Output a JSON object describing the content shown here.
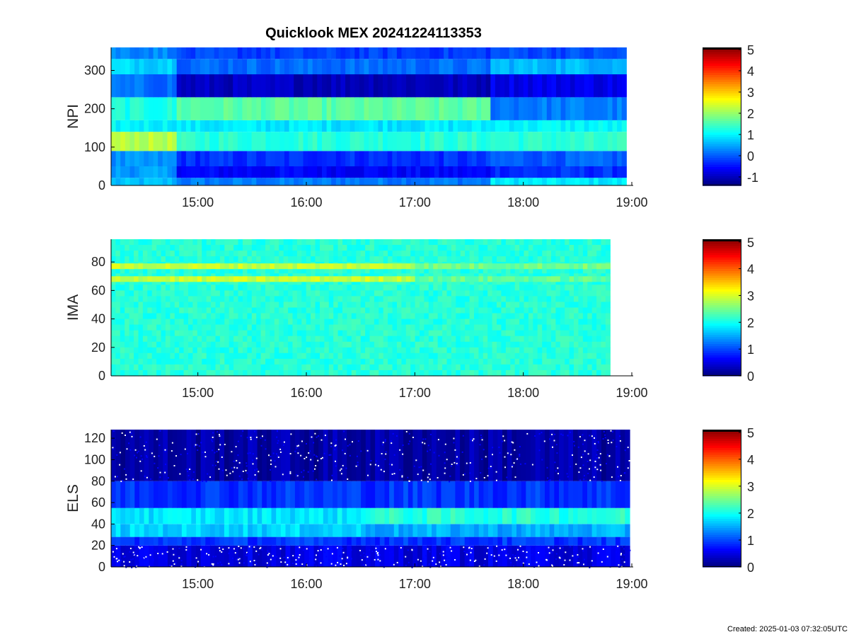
{
  "title": "Quicklook MEX 20241224113353",
  "created": "Created: 2025-01-03 07:32:05UTC",
  "chart_data": [
    {
      "type": "heatmap",
      "ylabel": "NPI",
      "xticks": [
        "15:00",
        "16:00",
        "17:00",
        "18:00",
        "19:00"
      ],
      "xrange": [
        "14:12",
        "19:05"
      ],
      "xtick_hours": [
        15,
        16,
        17,
        18,
        19
      ],
      "ylim": [
        0,
        360
      ],
      "yticks": [
        0,
        100,
        200,
        300
      ],
      "data_x_range_hours": [
        14.2,
        18.95
      ],
      "colorbar": {
        "ticks": [
          -1,
          0,
          1,
          2,
          3,
          4,
          5
        ],
        "range": [
          -1.4,
          5.1
        ],
        "colormap": "jet"
      },
      "bands": [
        {
          "y": [
            0,
            20
          ],
          "segments": [
            [
              14.2,
              14.8,
              0.6
            ],
            [
              14.8,
              17.7,
              0.2
            ],
            [
              17.7,
              18.95,
              0.9
            ]
          ]
        },
        {
          "y": [
            20,
            50
          ],
          "segments": [
            [
              14.2,
              14.8,
              0.4
            ],
            [
              14.8,
              17.7,
              -0.6
            ],
            [
              17.7,
              18.95,
              -0.3
            ]
          ]
        },
        {
          "y": [
            50,
            90
          ],
          "segments": [
            [
              14.2,
              14.8,
              0.3
            ],
            [
              14.8,
              17.7,
              -0.3
            ],
            [
              17.7,
              18.95,
              0.0
            ]
          ]
        },
        {
          "y": [
            90,
            140
          ],
          "segments": [
            [
              14.2,
              14.8,
              2.2
            ],
            [
              14.8,
              17.7,
              1.3
            ],
            [
              17.7,
              18.95,
              1.3
            ]
          ]
        },
        {
          "y": [
            140,
            170
          ],
          "segments": [
            [
              14.2,
              14.8,
              1.0
            ],
            [
              14.8,
              17.7,
              0.9
            ],
            [
              17.7,
              18.95,
              1.0
            ]
          ]
        },
        {
          "y": [
            170,
            230
          ],
          "segments": [
            [
              14.2,
              14.8,
              1.2
            ],
            [
              14.8,
              17.7,
              1.6
            ],
            [
              17.7,
              18.95,
              0.2
            ]
          ]
        },
        {
          "y": [
            230,
            290
          ],
          "segments": [
            [
              14.2,
              14.8,
              0.1
            ],
            [
              14.8,
              17.7,
              -1.0
            ],
            [
              17.7,
              18.95,
              -0.7
            ]
          ]
        },
        {
          "y": [
            290,
            330
          ],
          "segments": [
            [
              14.2,
              14.8,
              0.8
            ],
            [
              14.8,
              17.7,
              0.1
            ],
            [
              17.7,
              18.95,
              0.6
            ]
          ]
        },
        {
          "y": [
            330,
            360
          ],
          "segments": [
            [
              14.2,
              14.8,
              0.3
            ],
            [
              14.8,
              17.7,
              -0.2
            ],
            [
              17.7,
              18.95,
              -0.1
            ]
          ]
        }
      ]
    },
    {
      "type": "heatmap",
      "ylabel": "IMA",
      "xticks": [
        "15:00",
        "16:00",
        "17:00",
        "18:00",
        "19:00"
      ],
      "xtick_hours": [
        15,
        16,
        17,
        18,
        19
      ],
      "ylim": [
        0,
        96
      ],
      "yticks": [
        0,
        20,
        40,
        60,
        80
      ],
      "data_x_range_hours": [
        14.2,
        18.8
      ],
      "colorbar": {
        "ticks": [
          0,
          1,
          2,
          3,
          4,
          5
        ],
        "range": [
          0,
          5.1
        ],
        "colormap": "jet"
      },
      "background_level": 2.1,
      "bands": [
        {
          "y": [
            66,
            70
          ],
          "segments": [
            [
              14.2,
              17.0,
              2.9
            ],
            [
              17.0,
              18.8,
              2.4
            ]
          ]
        },
        {
          "y": [
            75,
            79
          ],
          "segments": [
            [
              14.2,
              17.0,
              2.9
            ],
            [
              17.0,
              18.8,
              2.5
            ]
          ]
        }
      ]
    },
    {
      "type": "heatmap",
      "ylabel": "ELS",
      "xticks": [
        "15:00",
        "16:00",
        "17:00",
        "18:00",
        "19:00"
      ],
      "xtick_hours": [
        15,
        16,
        17,
        18,
        19
      ],
      "ylim": [
        0,
        128
      ],
      "yticks": [
        0,
        20,
        40,
        60,
        80,
        100,
        120
      ],
      "data_x_range_hours": [
        14.2,
        18.98
      ],
      "colorbar": {
        "ticks": [
          0,
          1,
          2,
          3,
          4,
          5
        ],
        "range": [
          0,
          5.1
        ],
        "colormap": "jet"
      },
      "bands": [
        {
          "y": [
            0,
            20
          ],
          "segments": [
            [
              14.2,
              18.98,
              0.5
            ]
          ]
        },
        {
          "y": [
            20,
            28
          ],
          "segments": [
            [
              14.2,
              18.98,
              0.9
            ]
          ]
        },
        {
          "y": [
            28,
            40
          ],
          "segments": [
            [
              14.2,
              16.5,
              1.7
            ],
            [
              16.5,
              18.98,
              1.5
            ]
          ]
        },
        {
          "y": [
            40,
            55
          ],
          "segments": [
            [
              14.2,
              16.5,
              1.8
            ],
            [
              16.5,
              18.98,
              2.1
            ]
          ]
        },
        {
          "y": [
            55,
            80
          ],
          "segments": [
            [
              14.2,
              18.98,
              0.9
            ]
          ]
        },
        {
          "y": [
            80,
            128
          ],
          "segments": [
            [
              14.2,
              18.98,
              0.2
            ]
          ]
        }
      ]
    }
  ]
}
